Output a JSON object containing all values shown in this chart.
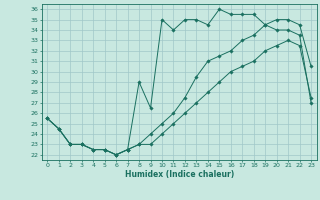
{
  "xlabel": "Humidex (Indice chaleur)",
  "bg_color": "#c8e8e0",
  "grid_color": "#a0c8c8",
  "line_color": "#1a7060",
  "xlim": [
    -0.5,
    23.5
  ],
  "ylim": [
    21.5,
    36.5
  ],
  "xticks": [
    0,
    1,
    2,
    3,
    4,
    5,
    6,
    7,
    8,
    9,
    10,
    11,
    12,
    13,
    14,
    15,
    16,
    17,
    18,
    19,
    20,
    21,
    22,
    23
  ],
  "yticks": [
    22,
    23,
    24,
    25,
    26,
    27,
    28,
    29,
    30,
    31,
    32,
    33,
    34,
    35,
    36
  ],
  "line1_x": [
    0,
    1,
    2,
    3,
    4,
    5,
    6,
    7,
    8,
    9,
    10,
    11,
    12,
    13,
    14,
    15,
    16,
    17,
    18,
    19,
    20,
    21,
    22,
    23
  ],
  "line1_y": [
    25.5,
    24.5,
    23.0,
    23.0,
    22.5,
    22.5,
    22.0,
    22.5,
    23.0,
    23.0,
    24.0,
    25.0,
    26.0,
    27.0,
    28.0,
    29.0,
    30.0,
    30.5,
    31.0,
    32.0,
    32.5,
    33.0,
    32.5,
    27.5
  ],
  "line2_x": [
    0,
    1,
    2,
    3,
    4,
    5,
    6,
    7,
    8,
    9,
    10,
    11,
    12,
    13,
    14,
    15,
    16,
    17,
    18,
    19,
    20,
    21,
    22,
    23
  ],
  "line2_y": [
    25.5,
    24.5,
    23.0,
    23.0,
    22.5,
    22.5,
    22.0,
    22.5,
    23.0,
    24.0,
    25.0,
    26.0,
    27.5,
    29.5,
    31.0,
    31.5,
    32.0,
    33.0,
    33.5,
    34.5,
    35.0,
    35.0,
    34.5,
    30.5
  ],
  "line3_x": [
    0,
    1,
    2,
    3,
    4,
    5,
    6,
    7,
    8,
    9,
    10,
    11,
    12,
    13,
    14,
    15,
    16,
    17,
    18,
    19,
    20,
    21,
    22,
    23
  ],
  "line3_y": [
    25.5,
    24.5,
    23.0,
    23.0,
    22.5,
    22.5,
    22.0,
    22.5,
    29.0,
    26.5,
    35.0,
    34.0,
    35.0,
    35.0,
    34.5,
    36.0,
    35.5,
    35.5,
    35.5,
    34.5,
    34.0,
    34.0,
    33.5,
    27.0
  ],
  "xlabel_fontsize": 5.5,
  "tick_fontsize": 4.5,
  "lw": 0.7,
  "marker_size": 1.8
}
